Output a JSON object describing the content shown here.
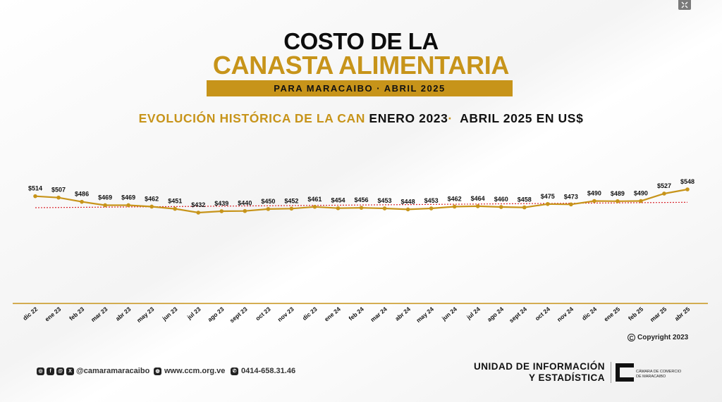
{
  "header": {
    "title_line1": "COSTO DE LA",
    "title_line2": "CANASTA ALIMENTARIA",
    "subtitle": "PARA MARACAIBO · ABRIL 2025",
    "chart_heading_gold": "EVOLUCIÓN HISTÓRICA DE LA CAN",
    "chart_heading_dark": " ENERO 2023",
    "chart_heading_sep": "·",
    "chart_heading_dark2": "  ABRIL 2025 EN US$"
  },
  "chart_data": {
    "type": "line",
    "title": "EVOLUCIÓN HISTÓRICA DE LA CAN ENERO 2023· ABRIL 2025 EN US$",
    "categories": [
      "dic 22",
      "ene 23",
      "feb 23",
      "mar 23",
      "abr 23",
      "may 23",
      "jun 23",
      "jul 23",
      "ago 23",
      "sept 23",
      "oct 23",
      "nov 23",
      "dic 23",
      "ene 24",
      "feb 24",
      "mar 24",
      "abr 24",
      "may 24",
      "jun 24",
      "jul 24",
      "ago 24",
      "sept 24",
      "oct 24",
      "nov 24",
      "dic 24",
      "ene 25",
      "feb 25",
      "mar 25",
      "abr 25"
    ],
    "series": [
      {
        "values": [
          514,
          507,
          486,
          469,
          469,
          462,
          451,
          432,
          439,
          440,
          450,
          452,
          461,
          454,
          456,
          453,
          448,
          453,
          462,
          464,
          460,
          458,
          475,
          473,
          490,
          489,
          490,
          527,
          548
        ]
      }
    ],
    "value_labels": [
      "$514",
      "$507",
      "$486",
      "$469",
      "$469",
      "$462",
      "$451",
      "$432",
      "$439",
      "$440",
      "$450",
      "$452",
      "$461",
      "$454",
      "$456",
      "$453",
      "$448",
      "$453",
      "$462",
      "$464",
      "$460",
      "$458",
      "$475",
      "$473",
      "$490",
      "$489",
      "$490",
      "$527",
      "$548"
    ],
    "trendline": true,
    "line_color": "#c7941a",
    "trend_color": "#d9262e",
    "ylim": [
      300,
      600
    ],
    "grid": false,
    "legend": "none"
  },
  "copyright": "Copyright 2023",
  "footer": {
    "social_handle": "@camaramaracaibo",
    "website": "www.ccm.org.ve",
    "phone": "0414-658.31.46",
    "unit_line1": "UNIDAD DE INFORMACIÓN",
    "unit_line2": "Y ESTADÍSTICA",
    "org_line1": "CÁMARA DE COMERCIO",
    "org_line2": "DE MARACAIBO",
    "icons": [
      "instagram-icon",
      "facebook-icon",
      "threads-icon",
      "x-icon",
      "web-icon",
      "whatsapp-icon",
      "expand-icon"
    ]
  }
}
